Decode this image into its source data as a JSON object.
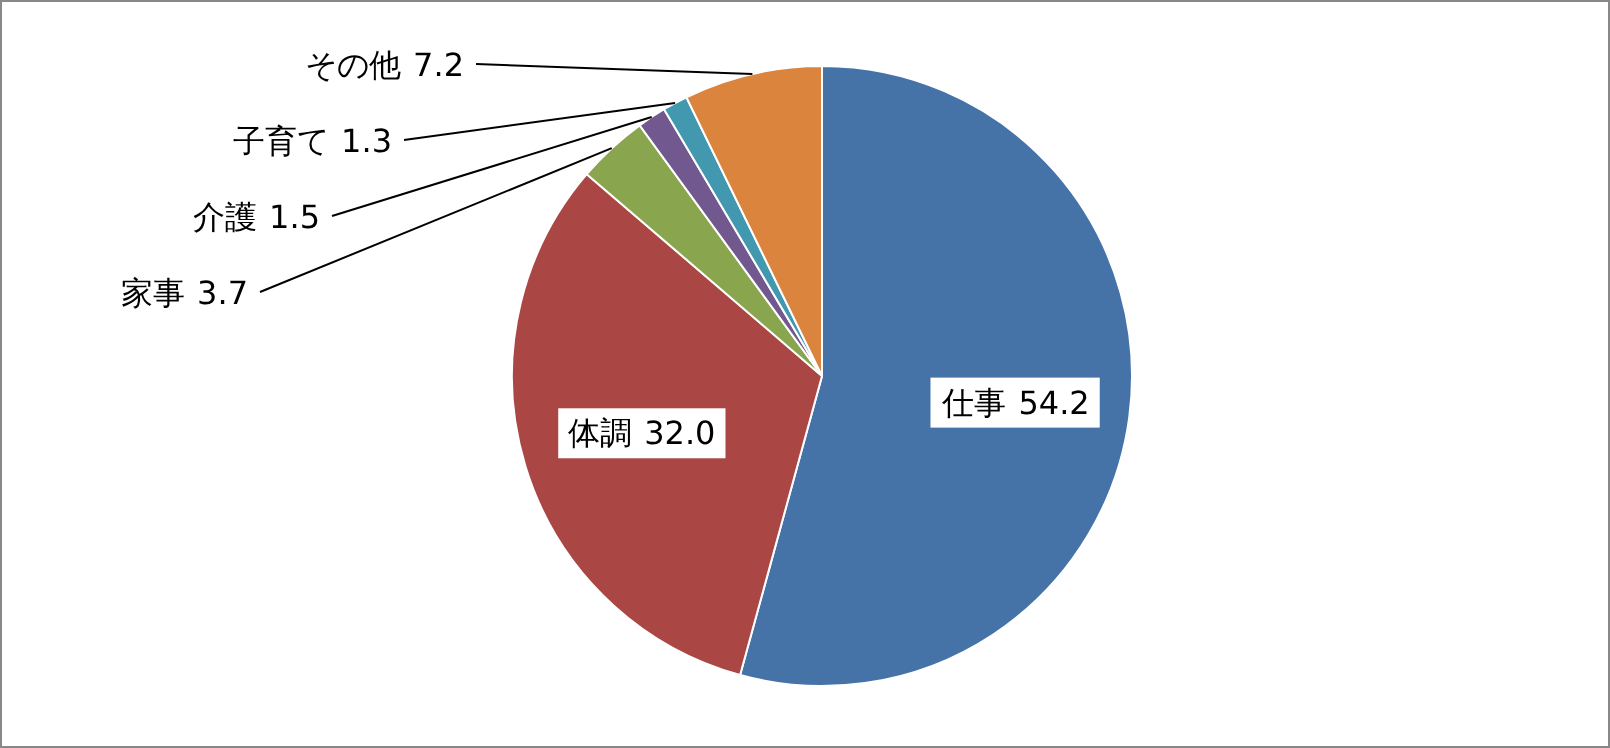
{
  "chart_data": {
    "type": "pie",
    "categories": [
      "仕事",
      "体調",
      "家事",
      "介護",
      "子育て",
      "その他"
    ],
    "values": [
      54.2,
      32.0,
      3.7,
      1.5,
      1.3,
      7.2
    ],
    "colors": [
      "#4572a7",
      "#aa4643",
      "#89a54e",
      "#71588f",
      "#4198af",
      "#db843d"
    ],
    "value_labels": [
      "54.2",
      "32.0",
      "3.7",
      "1.5",
      "1.3",
      "7.2"
    ]
  }
}
